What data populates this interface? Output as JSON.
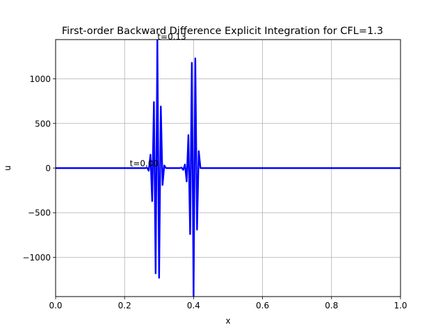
{
  "chart_data": {
    "type": "line",
    "title": "First-order Backward Difference Explicit Integration for  CFL=1.3",
    "xlabel": "x",
    "ylabel": "u",
    "xlim": [
      0,
      1
    ],
    "ylim": [
      -1440,
      1440
    ],
    "grid": true,
    "x_ticks": [
      0,
      0.2,
      0.4,
      0.6,
      0.8,
      1.0
    ],
    "x_tick_labels": [
      "0.0",
      "0.2",
      "0.4",
      "0.6",
      "0.8",
      "1.0"
    ],
    "y_ticks": [
      -1000,
      -500,
      0,
      500,
      1000
    ],
    "y_tick_labels": [
      "−1000",
      "−500",
      "0",
      "500",
      "1000"
    ],
    "series_color": "#0000ff",
    "series": [
      {
        "x": [
          0.0,
          0.2,
          0.26,
          0.265,
          0.27,
          0.275,
          0.28,
          0.285,
          0.29,
          0.295,
          0.3,
          0.305,
          0.31,
          0.315,
          0.32,
          0.34,
          0.36,
          0.365,
          0.37,
          0.375,
          0.38,
          0.385,
          0.39,
          0.395,
          0.4,
          0.405,
          0.41,
          0.415,
          0.42,
          0.45,
          0.6,
          0.8,
          1.0
        ],
        "y": [
          0,
          0,
          0,
          5,
          -30,
          150,
          -370,
          740,
          -1180,
          1440,
          -1230,
          690,
          -190,
          30,
          0,
          0,
          0,
          5,
          -20,
          40,
          -150,
          370,
          -740,
          1180,
          -1440,
          1230,
          -690,
          190,
          0,
          0,
          0,
          0,
          0
        ]
      }
    ],
    "annotations": [
      {
        "text": "t=0.00",
        "x": 0.215,
        "y": 20
      },
      {
        "text": "t=0.13",
        "x": 0.295,
        "y": 1440
      }
    ]
  }
}
